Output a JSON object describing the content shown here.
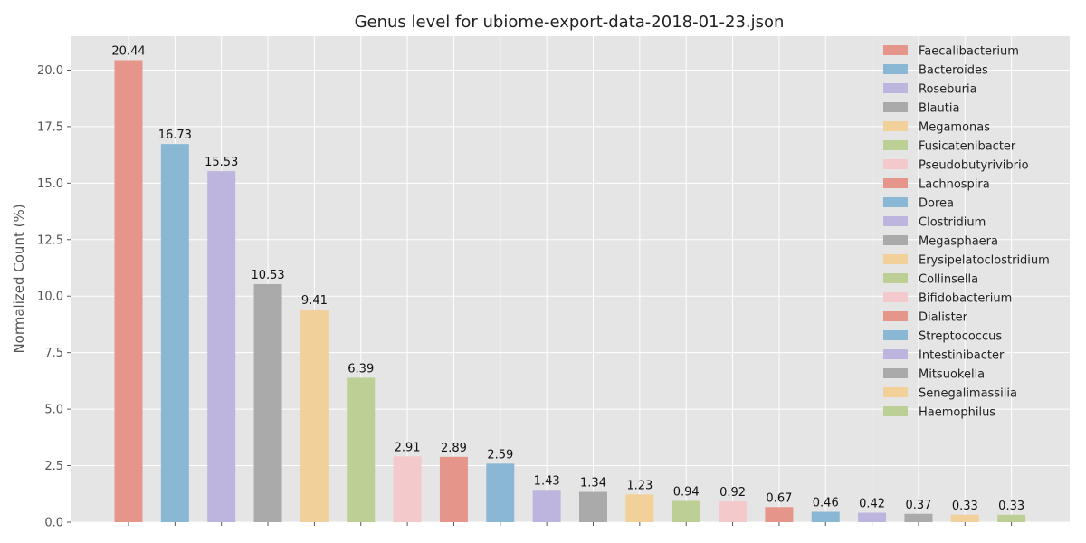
{
  "chart_data": {
    "type": "bar",
    "title": "Genus level for ubiome-export-data-2018-01-23.json",
    "xlabel": "",
    "ylabel": "Normalized Count (%)",
    "ylim": [
      0,
      21.5
    ],
    "yticks": [
      "0.0",
      "2.5",
      "5.0",
      "7.5",
      "10.0",
      "12.5",
      "15.0",
      "17.5",
      "20.0"
    ],
    "grid": true,
    "legend_position": "top-right",
    "categories": [
      "Faecalibacterium",
      "Bacteroides",
      "Roseburia",
      "Blautia",
      "Megamonas",
      "Fusicatenibacter",
      "Pseudobutyrivibrio",
      "Lachnospira",
      "Dorea",
      "Clostridium",
      "Megasphaera",
      "Erysipelatoclostridium",
      "Collinsella",
      "Bifidobacterium",
      "Dialister",
      "Streptococcus",
      "Intestinibacter",
      "Mitsuokella",
      "Senegalimassilia",
      "Haemophilus"
    ],
    "values": [
      20.44,
      16.73,
      15.53,
      10.53,
      9.41,
      6.39,
      2.91,
      2.89,
      2.59,
      1.43,
      1.34,
      1.23,
      0.94,
      0.92,
      0.67,
      0.46,
      0.42,
      0.37,
      0.33,
      0.33
    ],
    "value_labels": [
      "20.44",
      "16.73",
      "15.53",
      "10.53",
      "9.41",
      "6.39",
      "2.91",
      "2.89",
      "2.59",
      "1.43",
      "1.34",
      "1.23",
      "0.94",
      "0.92",
      "0.67",
      "0.46",
      "0.42",
      "0.37",
      "0.33",
      "0.33"
    ],
    "colors": [
      "#E5958A",
      "#8AB8D4",
      "#BDB5DD",
      "#AAAAAA",
      "#F1D199",
      "#BCD096",
      "#F3C9CB",
      "#E5958A",
      "#8AB8D4",
      "#BDB5DD",
      "#AAAAAA",
      "#F1D199",
      "#BCD096",
      "#F3C9CB",
      "#E5958A",
      "#8AB8D4",
      "#BDB5DD",
      "#AAAAAA",
      "#F1D199",
      "#BCD096"
    ],
    "plot_background": "#E5E5E5",
    "grid_color": "#FFFFFF"
  }
}
